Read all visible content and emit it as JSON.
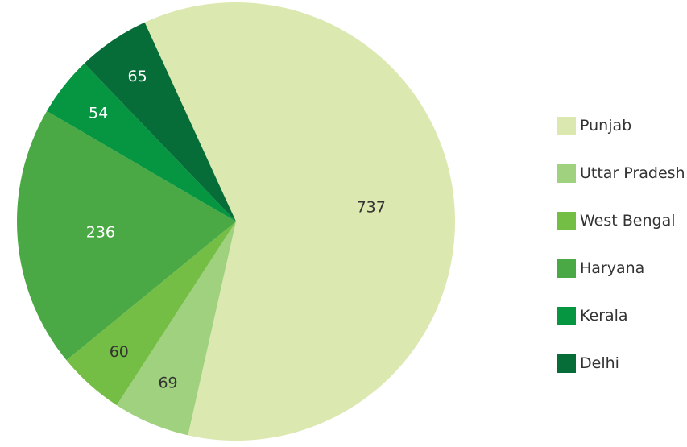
{
  "chart_data": {
    "type": "pie",
    "categories": [
      "Punjab",
      "Uttar Pradesh",
      "West Bengal",
      "Haryana",
      "Kerala",
      "Delhi"
    ],
    "values": [
      737,
      69,
      60,
      236,
      54,
      65
    ],
    "colors": [
      "#dbe8b0",
      "#9fd17f",
      "#74be45",
      "#4aa945",
      "#069541",
      "#066d38"
    ],
    "label_colors": [
      "#333333",
      "#333333",
      "#333333",
      "#ffffff",
      "#ffffff",
      "#ffffff"
    ],
    "legend_position": "right",
    "start_slice": "Punjab",
    "direction": "clockwise"
  }
}
